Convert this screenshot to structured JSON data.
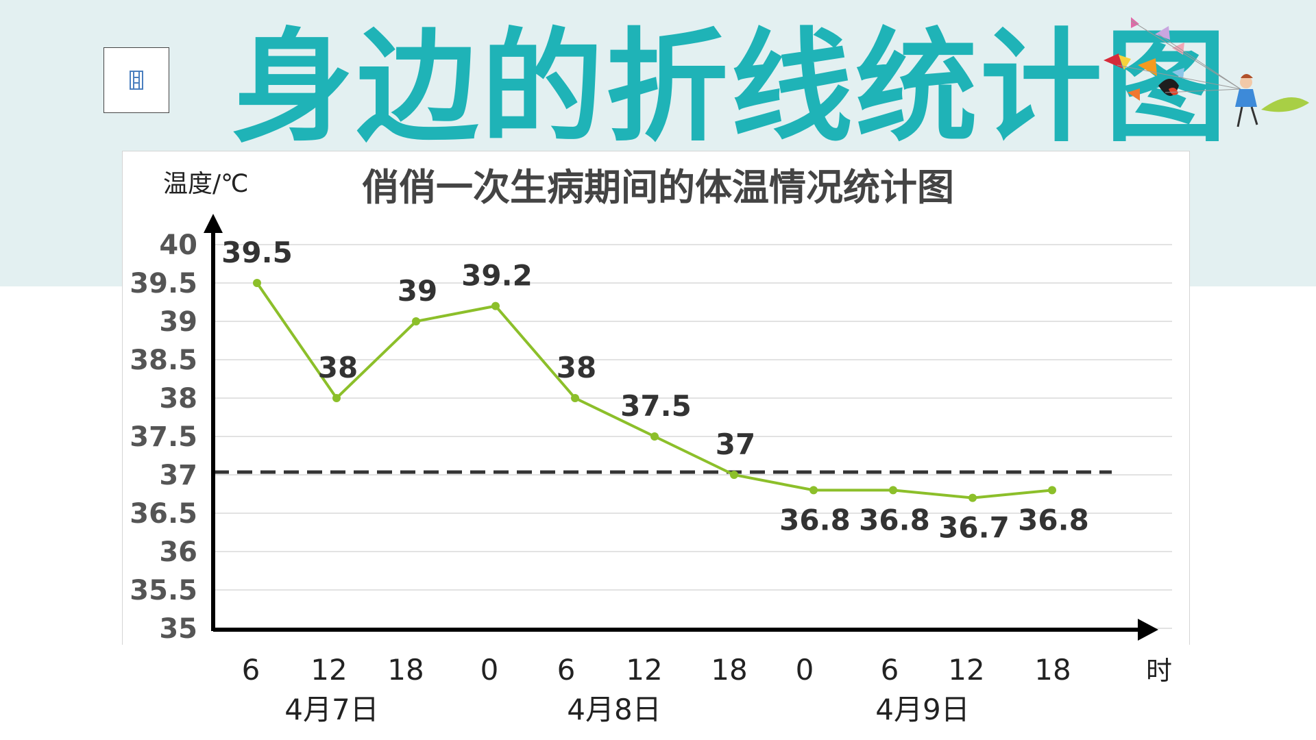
{
  "header": {
    "title": "身边的折线统计图",
    "film_icon": "film-strip-icon",
    "decoration_icon": "butterflies-girl-illustration"
  },
  "colors": {
    "band": "#e3f0f1",
    "title": "#1fb3b7",
    "line": "#8cbf2a",
    "reference_line": "#333333",
    "grid": "#d8d8d8",
    "axis": "#000000"
  },
  "chart_data": {
    "type": "line",
    "title": "俏俏一次生病期间的体温情况统计图",
    "ylabel": "温度/℃",
    "xlabel": "时",
    "ylim": [
      35,
      40
    ],
    "yticks": [
      "40",
      "39.5",
      "39",
      "38.5",
      "38",
      "37.5",
      "37",
      "36.5",
      "36",
      "35.5",
      "35"
    ],
    "categories": [
      "6",
      "12",
      "18",
      "0",
      "6",
      "12",
      "18",
      "0",
      "6",
      "12",
      "18"
    ],
    "day_labels": [
      "4月7日",
      "4月8日",
      "4月9日"
    ],
    "series": [
      {
        "values": [
          39.5,
          38,
          39,
          39.2,
          38,
          37.5,
          37,
          36.8,
          36.8,
          36.7,
          36.8
        ],
        "labels": [
          "39.5",
          "38",
          "39",
          "39.2",
          "38",
          "37.5",
          "37",
          "36.8",
          "36.8",
          "36.7",
          "36.8"
        ]
      }
    ],
    "reference_line": {
      "y": 37,
      "style": "dashed"
    },
    "grid": true
  }
}
